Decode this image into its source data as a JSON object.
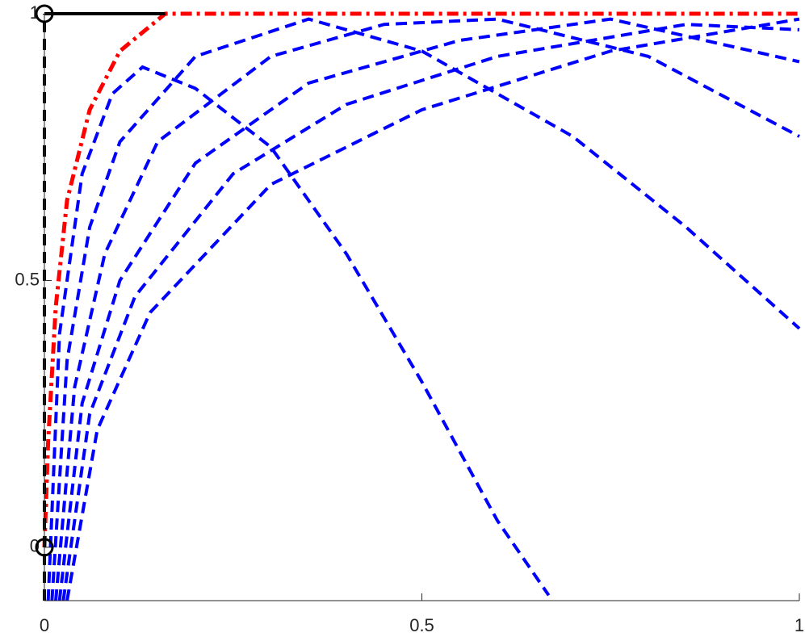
{
  "chart_data": {
    "type": "line",
    "xlim": [
      0,
      1
    ],
    "ylim": [
      -0.1,
      1
    ],
    "xticks": [
      0,
      0.5,
      1
    ],
    "yticks": [
      0,
      0.5,
      1
    ],
    "series": [
      {
        "color": "#0000ff",
        "style": "dashed",
        "x": [
          0.005,
          0.02,
          0.05,
          0.09,
          0.13,
          0.2,
          0.3,
          0.4,
          0.5,
          0.6,
          0.668
        ],
        "values": [
          -0.1,
          0.4,
          0.7,
          0.85,
          0.9,
          0.86,
          0.75,
          0.55,
          0.31,
          0.05,
          -0.09
        ]
      },
      {
        "color": "#0000ff",
        "style": "dashed",
        "x": [
          0.01,
          0.03,
          0.06,
          0.1,
          0.2,
          0.35,
          0.5,
          0.7,
          0.85,
          1
        ],
        "values": [
          -0.1,
          0.35,
          0.6,
          0.76,
          0.92,
          0.99,
          0.93,
          0.77,
          0.6,
          0.41
        ]
      },
      {
        "color": "#0000ff",
        "style": "dashed",
        "x": [
          0.015,
          0.04,
          0.08,
          0.15,
          0.3,
          0.45,
          0.6,
          0.8,
          1
        ],
        "values": [
          -0.1,
          0.3,
          0.55,
          0.76,
          0.92,
          0.98,
          0.99,
          0.92,
          0.77
        ]
      },
      {
        "color": "#0000ff",
        "style": "dashed",
        "x": [
          0.02,
          0.05,
          0.1,
          0.2,
          0.35,
          0.55,
          0.75,
          1
        ],
        "values": [
          -0.1,
          0.27,
          0.5,
          0.72,
          0.87,
          0.95,
          0.99,
          0.91
        ]
      },
      {
        "color": "#0000ff",
        "style": "dashed",
        "x": [
          0.025,
          0.06,
          0.12,
          0.25,
          0.4,
          0.6,
          0.85,
          1
        ],
        "values": [
          -0.1,
          0.25,
          0.47,
          0.7,
          0.83,
          0.92,
          0.98,
          0.97
        ]
      },
      {
        "color": "#0000ff",
        "style": "dashed",
        "x": [
          0.03,
          0.07,
          0.14,
          0.3,
          0.5,
          0.75,
          1
        ],
        "values": [
          -0.1,
          0.22,
          0.44,
          0.68,
          0.82,
          0.93,
          0.99
        ]
      },
      {
        "color": "#ff0000",
        "style": "dashdot",
        "x": [
          0,
          0.005,
          0.015,
          0.03,
          0.06,
          0.1,
          0.16,
          1
        ],
        "values": [
          0,
          0.2,
          0.45,
          0.65,
          0.82,
          0.93,
          1,
          1
        ]
      },
      {
        "color": "#000000",
        "style": "dashed",
        "x": [
          0,
          0
        ],
        "values": [
          -0.1,
          1
        ]
      },
      {
        "color": "#000000",
        "style": "solid",
        "x": [
          0,
          0.16
        ],
        "values": [
          1,
          1
        ]
      }
    ],
    "markers": {
      "color": "#000000",
      "x": [
        0,
        0
      ],
      "values": [
        0,
        1
      ]
    }
  }
}
